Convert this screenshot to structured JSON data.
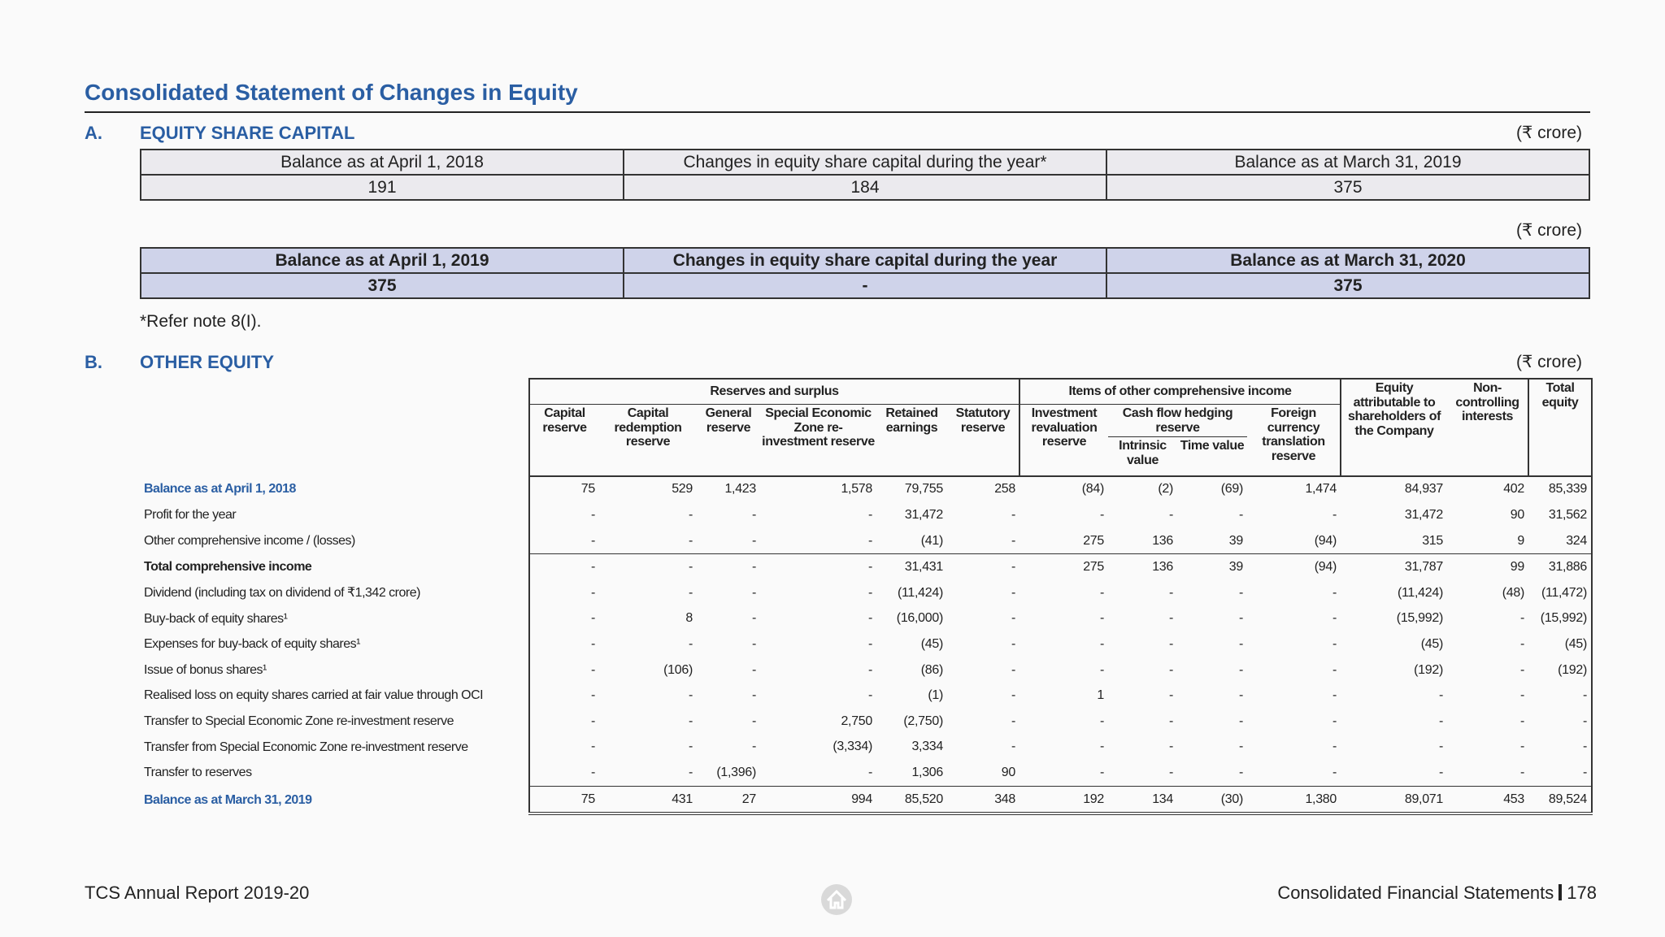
{
  "title": "Consolidated Statement of Changes in Equity",
  "section_a": {
    "label": "A.",
    "heading": "EQUITY SHARE CAPITAL",
    "unit": "(₹ crore)",
    "table_2019": {
      "header": [
        "Balance as at April 1, 2018",
        "Changes in equity share capital during the year*",
        "Balance as at March 31, 2019"
      ],
      "row": [
        "191",
        "184",
        "375"
      ]
    },
    "unit_2": "(₹ crore)",
    "table_2020": {
      "header": [
        "Balance as at April 1, 2019",
        "Changes in equity share capital during the year",
        "Balance as at March 31, 2020"
      ],
      "row": [
        "375",
        "-",
        "375"
      ]
    },
    "note": "*Refer note 8(I)."
  },
  "section_b": {
    "label": "B.",
    "heading": "OTHER EQUITY",
    "unit": "(₹ crore)",
    "header": {
      "reserves_group": "Reserves and surplus",
      "oci_group": "Items of other comprehensive income",
      "reserves": [
        "Capital reserve",
        "Capital redemption reserve",
        "General reserve",
        "Special Economic Zone re-investment reserve",
        "Retained earnings",
        "Statutory reserve"
      ],
      "investment": "Investment revaluation reserve",
      "cash_flow": "Cash flow hedging reserve",
      "cash_flow_sub": [
        "Intrinsic value",
        "Time value"
      ],
      "foreign": "Foreign currency translation reserve",
      "equity": "Equity attributable to shareholders of the Company",
      "non_controlling": "Non-controlling interests",
      "total": "Total equity"
    },
    "rows": [
      {
        "label": "Balance as at April 1, 2018",
        "values": [
          "75",
          "529",
          "1,423",
          "1,578",
          "79,755",
          "258",
          "(84)",
          "(2)",
          "(69)",
          "1,474",
          "84,937",
          "402",
          "85,339"
        ]
      },
      {
        "label": "Profit for the year",
        "values": [
          "-",
          "-",
          "-",
          "-",
          "31,472",
          "-",
          "-",
          "-",
          "-",
          "-",
          "31,472",
          "90",
          "31,562"
        ]
      },
      {
        "label": "Other comprehensive income / (losses)",
        "values": [
          "-",
          "-",
          "-",
          "-",
          "(41)",
          "-",
          "275",
          "136",
          "39",
          "(94)",
          "315",
          "9",
          "324"
        ]
      },
      {
        "label": "Total comprehensive income",
        "values": [
          "-",
          "-",
          "-",
          "-",
          "31,431",
          "-",
          "275",
          "136",
          "39",
          "(94)",
          "31,787",
          "99",
          "31,886"
        ]
      },
      {
        "label": "Dividend (including tax on dividend of ₹1,342 crore)",
        "values": [
          "-",
          "-",
          "-",
          "-",
          "(11,424)",
          "-",
          "-",
          "-",
          "-",
          "-",
          "(11,424)",
          "(48)",
          "(11,472)"
        ]
      },
      {
        "label": "Buy-back of equity shares¹",
        "values": [
          "-",
          "8",
          "-",
          "-",
          "(16,000)",
          "-",
          "-",
          "-",
          "-",
          "-",
          "(15,992)",
          "-",
          "(15,992)"
        ]
      },
      {
        "label": "Expenses for buy-back of equity shares¹",
        "values": [
          "-",
          "-",
          "-",
          "-",
          "(45)",
          "-",
          "-",
          "-",
          "-",
          "-",
          "(45)",
          "-",
          "(45)"
        ]
      },
      {
        "label": "Issue of bonus shares¹",
        "values": [
          "-",
          "(106)",
          "-",
          "-",
          "(86)",
          "-",
          "-",
          "-",
          "-",
          "-",
          "(192)",
          "-",
          "(192)"
        ]
      },
      {
        "label": "Realised loss on equity shares carried at fair value through OCI",
        "values": [
          "-",
          "-",
          "-",
          "-",
          "(1)",
          "-",
          "1",
          "-",
          "-",
          "-",
          "-",
          "-",
          "-"
        ]
      },
      {
        "label": "Transfer to Special Economic Zone re-investment reserve",
        "values": [
          "-",
          "-",
          "-",
          "2,750",
          "(2,750)",
          "-",
          "-",
          "-",
          "-",
          "-",
          "-",
          "-",
          "-"
        ]
      },
      {
        "label": "Transfer from Special Economic Zone re-investment reserve",
        "values": [
          "-",
          "-",
          "-",
          "(3,334)",
          "3,334",
          "-",
          "-",
          "-",
          "-",
          "-",
          "-",
          "-",
          "-"
        ]
      },
      {
        "label": "Transfer to reserves",
        "values": [
          "-",
          "-",
          "(1,396)",
          "-",
          "1,306",
          "90",
          "-",
          "-",
          "-",
          "-",
          "-",
          "-",
          "-"
        ]
      },
      {
        "label": "Balance as at March 31, 2019",
        "values": [
          "75",
          "431",
          "27",
          "994",
          "85,520",
          "348",
          "192",
          "134",
          "(30)",
          "1,380",
          "89,071",
          "453",
          "89,524"
        ]
      }
    ]
  },
  "footer": {
    "left": "TCS Annual Report 2019-20",
    "right": "Consolidated Financial Statements",
    "page": "178"
  }
}
